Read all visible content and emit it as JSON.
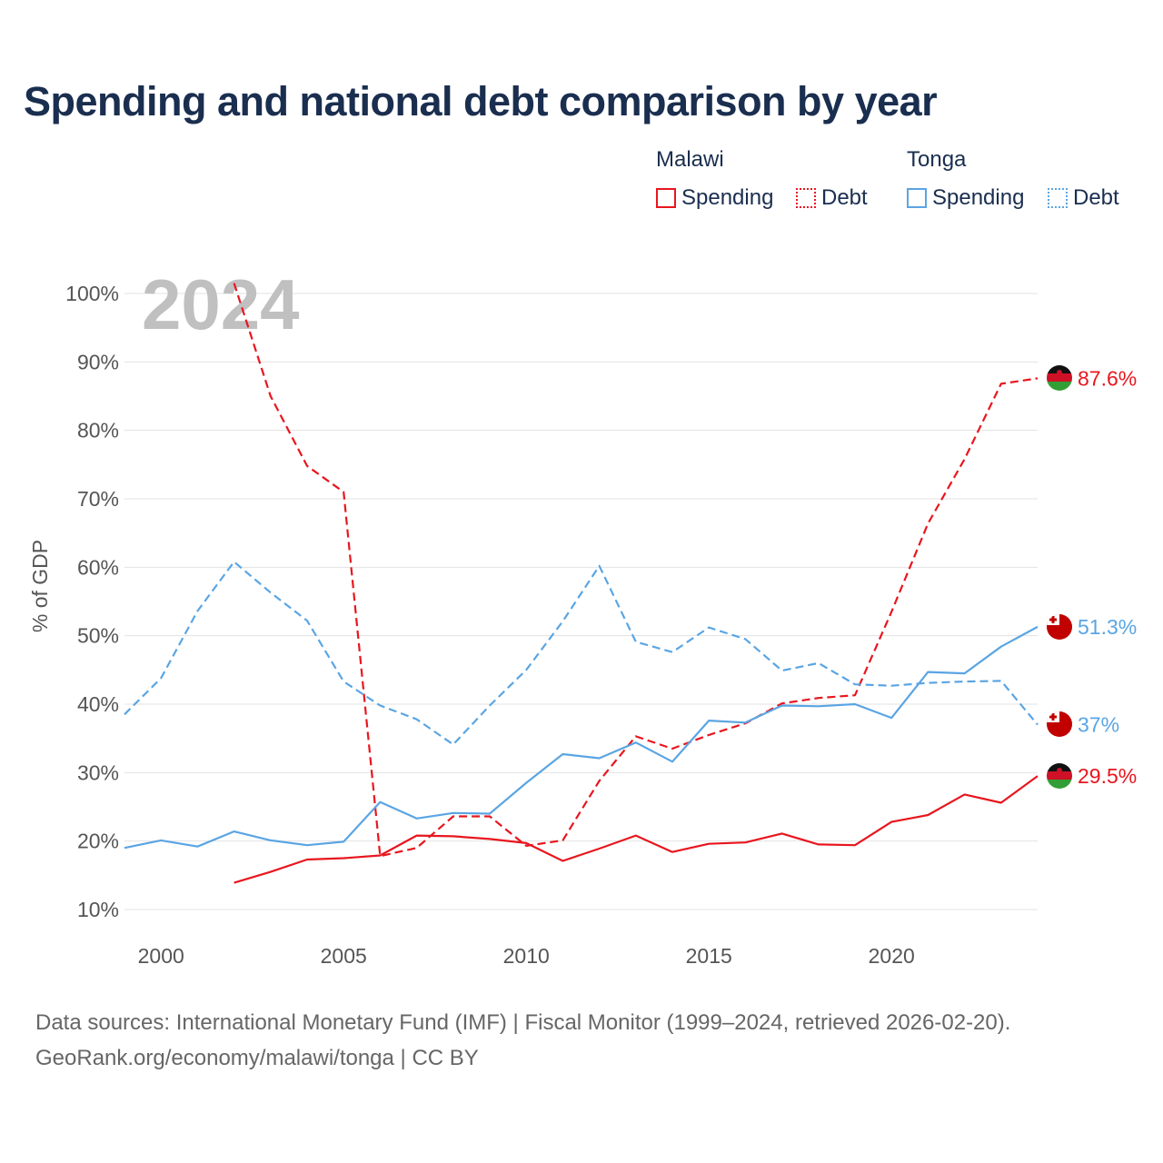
{
  "title": "Spending and national debt comparison by year",
  "legend": {
    "groups": [
      {
        "country": "Malawi",
        "items": [
          {
            "label": "Spending"
          },
          {
            "label": "Debt"
          }
        ]
      },
      {
        "country": "Tonga",
        "items": [
          {
            "label": "Spending"
          },
          {
            "label": "Debt"
          }
        ]
      }
    ]
  },
  "footer": {
    "line1": "Data sources: International Monetary Fund (IMF) | Fiscal Monitor (1999–2024, retrieved 2026-02-20).",
    "line2": "GeoRank.org/economy/malawi/tonga | CC BY"
  },
  "colors": {
    "malawi": "#e8161e",
    "tonga": "#5aa5e3",
    "grid": "#e3e3e3"
  },
  "chart_data": {
    "type": "line",
    "year_label": "2024",
    "ylabel": "% of GDP",
    "xlim": [
      1999,
      2024
    ],
    "ylim": [
      10,
      100
    ],
    "x_ticks": [
      2000,
      2005,
      2010,
      2015,
      2020
    ],
    "y_ticks": [
      10,
      20,
      30,
      40,
      50,
      60,
      70,
      80,
      90,
      100
    ],
    "y_tick_labels": [
      "10%",
      "20%",
      "30%",
      "40%",
      "50%",
      "60%",
      "70%",
      "80%",
      "90%",
      "100%"
    ],
    "series": [
      {
        "name": "Malawi Spending",
        "country": "Malawi",
        "kind": "Spending",
        "style": "solid",
        "color": "#e8161e",
        "x": [
          2002,
          2003,
          2004,
          2005,
          2006,
          2007,
          2008,
          2009,
          2010,
          2011,
          2012,
          2013,
          2014,
          2015,
          2016,
          2017,
          2018,
          2019,
          2020,
          2021,
          2022,
          2023,
          2024
        ],
        "values": [
          13.9,
          15.5,
          17.3,
          17.5,
          17.9,
          20.8,
          20.7,
          20.3,
          19.7,
          17.1,
          18.9,
          20.8,
          18.4,
          19.6,
          19.8,
          21.1,
          19.5,
          19.4,
          22.8,
          23.8,
          26.8,
          25.6,
          29.5
        ],
        "end_label": "29.5%"
      },
      {
        "name": "Malawi Debt",
        "country": "Malawi",
        "kind": "Debt",
        "style": "dashed",
        "color": "#e8161e",
        "x": [
          2002,
          2003,
          2004,
          2005,
          2006,
          2007,
          2008,
          2009,
          2010,
          2011,
          2012,
          2013,
          2014,
          2015,
          2016,
          2017,
          2018,
          2019,
          2020,
          2021,
          2022,
          2023,
          2024
        ],
        "values": [
          101.5,
          85.0,
          74.8,
          71.0,
          17.8,
          19.0,
          23.6,
          23.6,
          19.3,
          20.1,
          28.8,
          35.3,
          33.5,
          35.5,
          37.2,
          40.1,
          40.9,
          41.3,
          53.5,
          66.4,
          75.8,
          86.8,
          87.6
        ],
        "end_label": "87.6%"
      },
      {
        "name": "Tonga Spending",
        "country": "Tonga",
        "kind": "Spending",
        "style": "solid",
        "color": "#5aa5e3",
        "x": [
          1999,
          2000,
          2001,
          2002,
          2003,
          2004,
          2005,
          2006,
          2007,
          2008,
          2009,
          2010,
          2011,
          2012,
          2013,
          2014,
          2015,
          2016,
          2017,
          2018,
          2019,
          2020,
          2021,
          2022,
          2023,
          2024
        ],
        "values": [
          19.0,
          20.1,
          19.2,
          21.4,
          20.1,
          19.4,
          19.9,
          25.7,
          23.3,
          24.1,
          24.0,
          28.5,
          32.7,
          32.1,
          34.4,
          31.6,
          37.6,
          37.3,
          39.8,
          39.7,
          40.0,
          38.0,
          44.7,
          44.5,
          48.4,
          51.3
        ],
        "end_label": "51.3%"
      },
      {
        "name": "Tonga Debt",
        "country": "Tonga",
        "kind": "Debt",
        "style": "dashed",
        "color": "#5aa5e3",
        "x": [
          1999,
          2000,
          2001,
          2002,
          2003,
          2004,
          2005,
          2006,
          2007,
          2008,
          2009,
          2010,
          2011,
          2012,
          2013,
          2014,
          2015,
          2016,
          2017,
          2018,
          2019,
          2020,
          2021,
          2022,
          2023,
          2024
        ],
        "values": [
          38.5,
          43.8,
          53.6,
          60.8,
          56.3,
          52.2,
          43.3,
          39.8,
          37.8,
          34.1,
          39.8,
          45.0,
          52.1,
          60.2,
          49.1,
          47.6,
          51.2,
          49.5,
          44.9,
          46.0,
          42.9,
          42.7,
          43.1,
          43.3,
          43.4,
          37.0
        ],
        "end_label": "37%"
      }
    ]
  }
}
